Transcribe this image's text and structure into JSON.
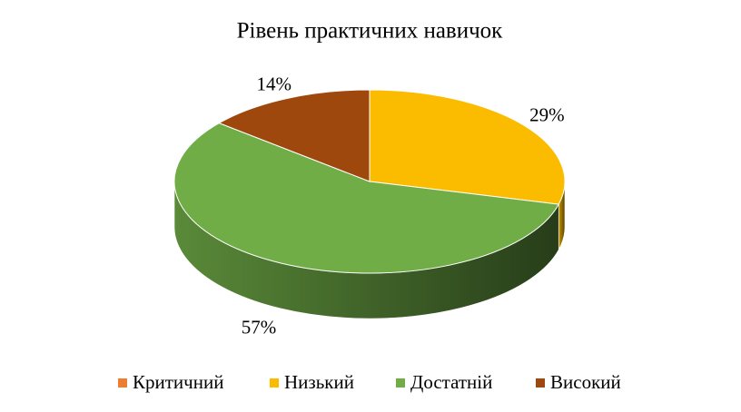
{
  "chart_data": {
    "type": "pie",
    "title": "Рівень  практичних навичок",
    "categories": [
      "Критичний",
      "Низький",
      "Достатній",
      "Високий"
    ],
    "values": [
      0,
      29,
      57,
      14
    ],
    "value_labels": [
      null,
      "29%",
      "57%",
      "14%"
    ],
    "colors": [
      "#ed7d31",
      "#fbbc00",
      "#70ad47",
      "#9e480e"
    ],
    "legend": "bottom"
  }
}
